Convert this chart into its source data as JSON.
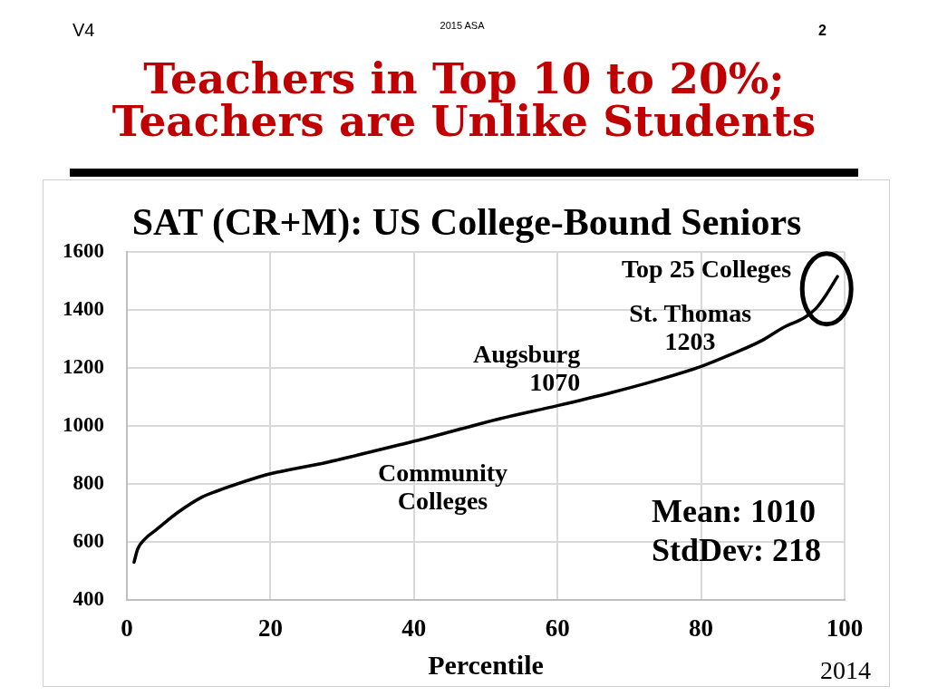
{
  "chart_data": {
    "type": "line",
    "title": "Teachers in Top 10 to 20%;\nTeachers are Unlike Students",
    "subtitle": "SAT (CR+M): US College-Bound Seniors",
    "xlabel": "Percentile",
    "x": [
      1,
      1.5,
      2.5,
      4,
      7,
      10.5,
      12.5,
      18.5,
      20,
      28,
      38,
      40.5,
      52,
      60,
      67.5,
      73.5,
      80,
      84,
      88.5,
      91.5,
      94.5,
      96,
      97.5,
      99
    ],
    "series": [
      {
        "color": "#000000",
        "values": [
          530,
          575,
          610,
          640,
          700,
          755,
          775,
          825,
          835,
          875,
          935,
          950,
          1025,
          1070,
          1115,
          1155,
          1205,
          1245,
          1295,
          1340,
          1375,
          1405,
          1455,
          1515
        ]
      }
    ],
    "xlim": [
      0,
      100
    ],
    "ylim": [
      400,
      1600
    ],
    "xticks": [
      0,
      20,
      40,
      60,
      80,
      100
    ],
    "yticks": [
      400,
      600,
      800,
      1000,
      1200,
      1400,
      1600
    ],
    "grid": true,
    "marker": "none",
    "line_style": "solid",
    "annotations": [
      "V4",
      "2015 ASA",
      "2",
      {
        "text": "Top 25 Colleges",
        "x": 97.5,
        "y": 1460
      },
      {
        "text": "St. Thomas\n1203",
        "x": 80,
        "y": 1203
      },
      {
        "text": "Augsburg\n1070",
        "x": 60,
        "y": 1070
      },
      {
        "text": "Community\nColleges",
        "x": 44,
        "y": 975
      },
      "Mean: 1010",
      "StdDev: 218",
      "2014"
    ]
  }
}
